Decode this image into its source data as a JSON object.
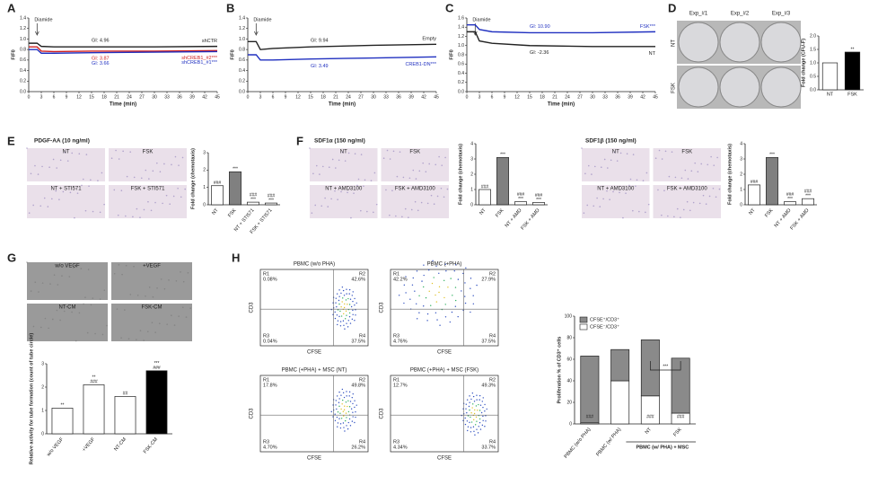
{
  "A": {
    "label": "A",
    "chart": {
      "type": "line",
      "ylabel": "F/F0",
      "xlabel": "Time (min)",
      "marker": {
        "label": "Diamide",
        "x": 2
      },
      "x": [
        0,
        2,
        3,
        6,
        15,
        30,
        45
      ],
      "xlim": [
        0,
        45
      ],
      "xticks": [
        0,
        3,
        6,
        9,
        12,
        15,
        18,
        21,
        24,
        27,
        30,
        33,
        36,
        39,
        42,
        45
      ],
      "ylim": [
        0,
        1.4
      ],
      "yticks": [
        {
          "value": 0,
          "label": "0.0"
        },
        0.2,
        0.4,
        0.6,
        0.8,
        {
          "value": 1,
          "label": "1.0"
        },
        1.2,
        1.4
      ],
      "series": [
        {
          "name": "shCTR",
          "gi": "GI: 4.96",
          "color": "#222222",
          "values": [
            0.92,
            0.92,
            0.86,
            0.85,
            0.85,
            0.85,
            0.86
          ]
        },
        {
          "name": "shCREB1_#2***",
          "gi": "GI: 3.87",
          "color": "#d02020",
          "values": [
            0.85,
            0.85,
            0.77,
            0.76,
            0.77,
            0.77,
            0.78
          ]
        },
        {
          "name": "shCREB1_#1***",
          "gi": "GI: 3.66",
          "color": "#2030c0",
          "values": [
            0.8,
            0.8,
            0.73,
            0.73,
            0.74,
            0.75,
            0.76
          ]
        }
      ]
    }
  },
  "B": {
    "label": "B",
    "chart": {
      "type": "line",
      "ylabel": "F/F0",
      "xlabel": "Time (min)",
      "marker": {
        "label": "Diamide",
        "x": 2
      },
      "x": [
        0,
        2,
        3,
        6,
        15,
        30,
        45
      ],
      "xlim": [
        0,
        45
      ],
      "xticks": [
        0,
        3,
        6,
        9,
        12,
        15,
        18,
        21,
        24,
        27,
        30,
        33,
        36,
        39,
        42,
        45
      ],
      "ylim": [
        0,
        1.4
      ],
      "yticks": [
        {
          "value": 0,
          "label": "0.0"
        },
        0.2,
        0.4,
        0.6,
        0.8,
        {
          "value": 1,
          "label": "1.0"
        },
        1.2,
        1.4
      ],
      "series": [
        {
          "name": "Empty",
          "gi": "GI: 9.94",
          "color": "#222222",
          "values": [
            0.95,
            0.95,
            0.8,
            0.82,
            0.85,
            0.88,
            0.9
          ]
        },
        {
          "name": "CREB1-DN***",
          "gi": "GI: 3.49",
          "color": "#2030c0",
          "values": [
            0.7,
            0.7,
            0.6,
            0.6,
            0.62,
            0.64,
            0.66
          ]
        }
      ]
    }
  },
  "C": {
    "label": "C",
    "chart": {
      "type": "line",
      "ylabel": "F/F0",
      "xlabel": "Time (min)",
      "marker": {
        "label": "Diamide",
        "x": 2
      },
      "x": [
        0,
        2,
        3,
        6,
        15,
        30,
        45
      ],
      "xlim": [
        0,
        45
      ],
      "xticks": [
        0,
        3,
        6,
        9,
        12,
        15,
        18,
        21,
        24,
        27,
        30,
        33,
        36,
        39,
        42,
        45
      ],
      "ylim": [
        0,
        1.6
      ],
      "yticks": [
        {
          "value": 0,
          "label": "0.0"
        },
        0.2,
        0.4,
        0.6,
        0.8,
        {
          "value": 1,
          "label": "1.0"
        },
        1.2,
        1.4,
        1.6
      ],
      "series": [
        {
          "name": "FSK***",
          "gi": "GI: 10.90",
          "color": "#2030c0",
          "values": [
            1.45,
            1.45,
            1.35,
            1.3,
            1.28,
            1.28,
            1.3
          ]
        },
        {
          "name": "NT",
          "gi": "GI: -2.36",
          "color": "#222222",
          "values": [
            1.3,
            1.3,
            1.1,
            1.05,
            1.0,
            0.98,
            0.98
          ]
        }
      ]
    }
  },
  "D": {
    "label": "D",
    "columns": [
      "Exp_#1",
      "Exp_#2",
      "Exp_#3"
    ],
    "rows": [
      "NT",
      "FSK"
    ],
    "chart": {
      "type": "bar",
      "ylabel": "Fold change (CFU-F)",
      "categories": [
        "NT",
        "FSK"
      ],
      "values": [
        1.0,
        1.4
      ],
      "colors": [
        "#ffffff",
        "#000000"
      ],
      "marks": [
        [],
        [
          "**"
        ]
      ],
      "ylim": [
        0,
        2
      ],
      "yticks": [
        {
          "value": 0,
          "label": "0.0"
        },
        0.5,
        {
          "value": 1,
          "label": "1.0"
        },
        1.5,
        {
          "value": 2,
          "label": "2.0"
        }
      ]
    }
  },
  "E": {
    "label": "E",
    "title": "PDGF-AA (10 ng/ml)",
    "images": [
      "NT",
      "FSK",
      "NT + STI571",
      "FSK + STI571"
    ],
    "chart": {
      "type": "bar",
      "ylabel": "Fold change (chemotaxis)",
      "categories": [
        "NT",
        "FSK",
        "NT + STI571",
        "FSK + STI571"
      ],
      "values": [
        1.1,
        1.9,
        0.15,
        0.1
      ],
      "colors": [
        "#ffffff",
        "#808080",
        "#ffffff",
        "#ffffff"
      ],
      "marks": [
        [
          "###"
        ],
        [
          "***"
        ],
        [
          "###",
          "***"
        ],
        [
          "###",
          "***"
        ]
      ],
      "ylim": [
        0,
        3
      ],
      "yticks": [
        0,
        1,
        2,
        3
      ]
    }
  },
  "F": {
    "label": "F",
    "title": "SDF1α (150 ng/ml)",
    "images": [
      "NT",
      "FSK",
      "NT + AMD3100",
      "FSK + AMD3100"
    ],
    "chart": {
      "type": "bar",
      "ylabel": "Fold change (chemotaxis)",
      "categories": [
        "NT",
        "FSK",
        "NT + AMD",
        "FSK + AMD"
      ],
      "values": [
        1.0,
        3.1,
        0.2,
        0.15
      ],
      "colors": [
        "#ffffff",
        "#808080",
        "#ffffff",
        "#ffffff"
      ],
      "marks": [
        [
          "###"
        ],
        [
          "***"
        ],
        [
          "###",
          "***"
        ],
        [
          "###",
          "***"
        ]
      ],
      "ylim": [
        0,
        4
      ],
      "yticks": [
        0,
        1,
        2,
        3,
        4
      ]
    }
  },
  "F2": {
    "title": "SDF1β (150 ng/ml)",
    "images": [
      "NT",
      "FSK",
      "NT + AMD3100",
      "FSK + AMD3100"
    ],
    "chart": {
      "type": "bar",
      "ylabel": "Fold change (chemotaxis)",
      "categories": [
        "NT",
        "FSK",
        "NT + AMD",
        "FSK + AMD"
      ],
      "values": [
        1.3,
        3.1,
        0.2,
        0.4
      ],
      "colors": [
        "#ffffff",
        "#808080",
        "#ffffff",
        "#ffffff"
      ],
      "marks": [
        [
          "###"
        ],
        [
          "***"
        ],
        [
          "###",
          "***"
        ],
        [
          "###",
          "***"
        ]
      ],
      "ylim": [
        0,
        4
      ],
      "yticks": [
        0,
        1,
        2,
        3,
        4
      ]
    }
  },
  "G": {
    "label": "G",
    "images": [
      "w/o VEGF",
      "+VEGF",
      "NT-CM",
      "FSK-CM"
    ],
    "chart": {
      "type": "bar",
      "ylabel": "Relative activity for tube formation (count of tube circle)",
      "categories": [
        "w/o VEGF",
        "+VEGF",
        "NT-CM",
        "FSK-CM"
      ],
      "values": [
        1.1,
        2.1,
        1.6,
        2.7
      ],
      "colors": [
        "#ffffff",
        "#ffffff",
        "#ffffff",
        "#000000"
      ],
      "marks": [
        [
          "**"
        ],
        [
          "**",
          "###"
        ],
        [
          "##"
        ],
        [
          "***",
          "###"
        ]
      ],
      "ylim": [
        0,
        3
      ],
      "yticks": [
        0,
        1,
        2,
        3
      ]
    }
  },
  "H": {
    "label": "H",
    "ylabel": "CD3",
    "xlabel": "CFSE",
    "plots": [
      {
        "title": "PBMC (w/o PHA)",
        "quadrants": [
          [
            "R1",
            "0.08%"
          ],
          [
            "R2",
            "42.6%"
          ],
          [
            "R3",
            "0.04%"
          ],
          [
            "R4",
            "37.5%"
          ]
        ]
      },
      {
        "title": "PBMC (+PHA)",
        "quadrants": [
          [
            "R1",
            "42.2%"
          ],
          [
            "R2",
            "27.9%"
          ],
          [
            "R3",
            "4.76%"
          ],
          [
            "R4",
            "37.5%"
          ]
        ]
      },
      {
        "title": "PBMC (+PHA) + MSC (NT)",
        "quadrants": [
          [
            "R1",
            "17.8%"
          ],
          [
            "R2",
            "49.8%"
          ],
          [
            "R3",
            "4.70%"
          ],
          [
            "R4",
            "26.2%"
          ]
        ]
      },
      {
        "title": "PBMC (+PHA) + MSC (FSK)",
        "quadrants": [
          [
            "R1",
            "12.7%"
          ],
          [
            "R2",
            "49.3%"
          ],
          [
            "R3",
            "4.34%"
          ],
          [
            "R4",
            "33.7%"
          ]
        ]
      }
    ],
    "chart": {
      "type": "stacked_bar",
      "ylabel": "Proliferation % of CD3⁺ cells",
      "categories": [
        "PBMC (w/o PHA)",
        "PBMC (w/ PHA)",
        "NT",
        "FSK"
      ],
      "group": "PBMC (w/ PHA) + MSC",
      "series": [
        {
          "name": "CFSE⁻/CD3⁺",
          "color": "#ffffff",
          "values": [
            1,
            40,
            26,
            10
          ]
        },
        {
          "name": "CFSE⁺/CD3⁺",
          "color": "#8a8a8a",
          "values": [
            62,
            29,
            52,
            51
          ]
        }
      ],
      "marks": [
        [
          "###"
        ],
        [],
        [
          "###"
        ],
        [
          "###"
        ]
      ],
      "bracket": "***",
      "ylim": [
        0,
        100
      ],
      "yticks": [
        0,
        20,
        40,
        60,
        80,
        100
      ]
    }
  }
}
